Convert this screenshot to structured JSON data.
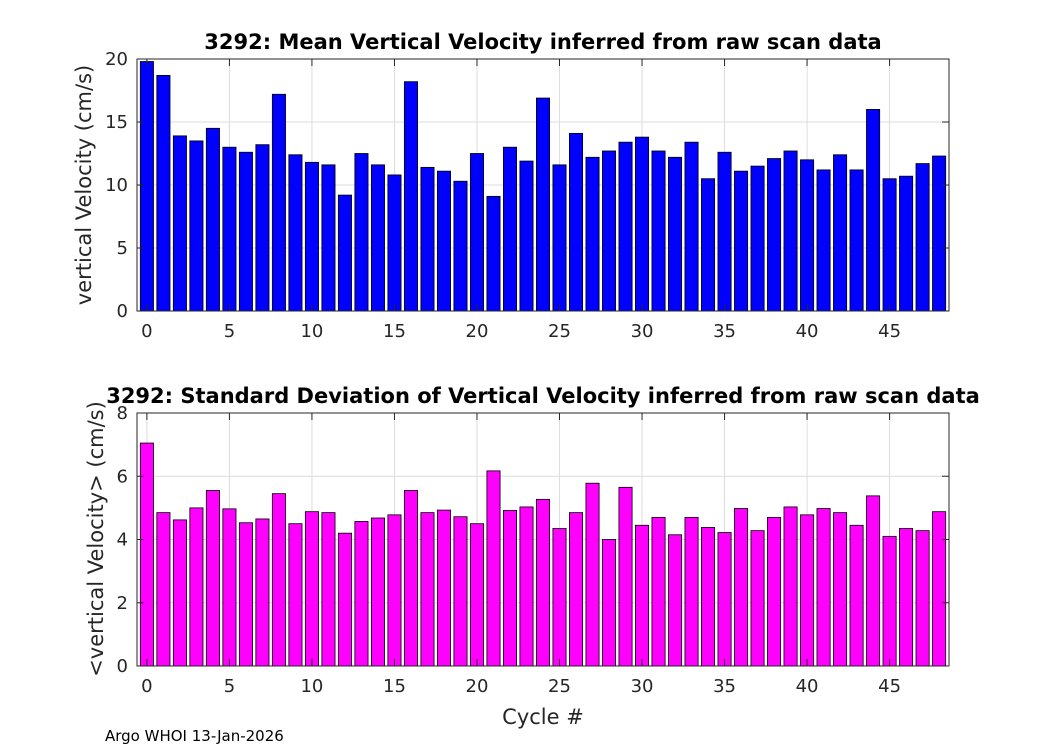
{
  "footer": "Argo WHOI 13-Jan-2026",
  "colors": {
    "top_bar": "#0000ff",
    "bottom_bar": "#ff00ff",
    "bar_edge": "#000000",
    "grid": "#dcdcdc"
  },
  "chart_data": [
    {
      "type": "bar",
      "title": "3292: Mean Vertical Velocity inferred from raw scan data",
      "xlabel": "",
      "ylabel": "vertical Velocity (cm/s)",
      "x": [
        0,
        1,
        2,
        3,
        4,
        5,
        6,
        7,
        8,
        9,
        10,
        11,
        12,
        13,
        14,
        15,
        16,
        17,
        18,
        19,
        20,
        21,
        22,
        23,
        24,
        25,
        26,
        27,
        28,
        29,
        30,
        31,
        32,
        33,
        34,
        35,
        36,
        37,
        38,
        39,
        40,
        41,
        42,
        43,
        44,
        45,
        46,
        47,
        48
      ],
      "values": [
        19.8,
        18.7,
        13.9,
        13.5,
        14.5,
        13.0,
        12.6,
        13.2,
        17.2,
        12.4,
        11.8,
        11.6,
        9.2,
        12.5,
        11.6,
        10.8,
        18.2,
        11.4,
        11.1,
        10.3,
        12.5,
        9.1,
        13.0,
        11.9,
        16.9,
        11.6,
        14.1,
        12.2,
        12.7,
        13.4,
        13.8,
        12.7,
        12.2,
        13.4,
        10.5,
        12.6,
        11.1,
        11.5,
        12.1,
        12.7,
        12.0,
        11.2,
        12.4,
        11.2,
        16.0,
        10.5,
        10.7,
        11.7,
        12.3
      ],
      "xlim": [
        -0.6,
        48.6
      ],
      "ylim": [
        0,
        20
      ],
      "xticks": [
        "0",
        "5",
        "10",
        "15",
        "20",
        "25",
        "30",
        "35",
        "40",
        "45"
      ],
      "yticks": [
        "0",
        "5",
        "10",
        "15",
        "20"
      ],
      "grid": true
    },
    {
      "type": "bar",
      "title": "3292: Standard Deviation of Vertical Velocity inferred from raw scan data",
      "xlabel": "Cycle #",
      "ylabel": "<vertical Velocity> (cm/s)",
      "x": [
        0,
        1,
        2,
        3,
        4,
        5,
        6,
        7,
        8,
        9,
        10,
        11,
        12,
        13,
        14,
        15,
        16,
        17,
        18,
        19,
        20,
        21,
        22,
        23,
        24,
        25,
        26,
        27,
        28,
        29,
        30,
        31,
        32,
        33,
        34,
        35,
        36,
        37,
        38,
        39,
        40,
        41,
        42,
        43,
        44,
        45,
        46,
        47,
        48
      ],
      "values": [
        7.05,
        4.85,
        4.62,
        5.0,
        5.55,
        4.97,
        4.53,
        4.65,
        5.45,
        4.5,
        4.88,
        4.85,
        4.2,
        4.57,
        4.68,
        4.78,
        5.55,
        4.85,
        4.93,
        4.72,
        4.5,
        6.17,
        4.92,
        5.03,
        5.27,
        4.35,
        4.85,
        5.78,
        4.0,
        5.65,
        4.45,
        4.7,
        4.15,
        4.7,
        4.38,
        4.22,
        4.98,
        4.28,
        4.7,
        5.03,
        4.78,
        4.98,
        4.85,
        4.45,
        5.38,
        4.1,
        4.35,
        4.28,
        4.88
      ],
      "xlim": [
        -0.6,
        48.6
      ],
      "ylim": [
        0,
        8
      ],
      "xticks": [
        "0",
        "5",
        "10",
        "15",
        "20",
        "25",
        "30",
        "35",
        "40",
        "45"
      ],
      "yticks": [
        "0",
        "2",
        "4",
        "6",
        "8"
      ],
      "grid": true
    }
  ]
}
